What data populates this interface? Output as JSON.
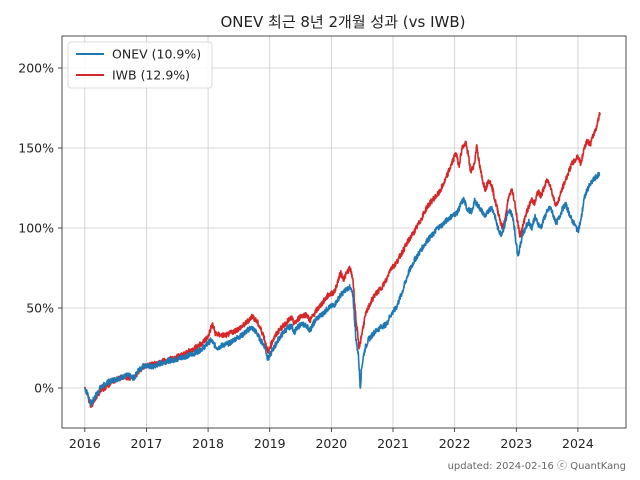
{
  "chart_data": {
    "type": "line",
    "title": "ONEV 최근 8년 2개월 성과 (vs IWB)",
    "xlabel": "",
    "ylabel": "",
    "xlim": [
      2015.63,
      2024.78
    ],
    "ylim": [
      -25,
      220
    ],
    "x_ticks": [
      2016,
      2017,
      2018,
      2019,
      2020,
      2021,
      2022,
      2023,
      2024
    ],
    "x_tick_labels": [
      "2016",
      "2017",
      "2018",
      "2019",
      "2020",
      "2021",
      "2022",
      "2023",
      "2024"
    ],
    "y_ticks": [
      0,
      50,
      100,
      150,
      200
    ],
    "y_tick_labels": [
      "0%",
      "50%",
      "100%",
      "150%",
      "200%"
    ],
    "grid": true,
    "legend_position": "top-left",
    "series": [
      {
        "name": "ONEV (10.9%)",
        "color": "#1f77b4",
        "points": [
          [
            2016.0,
            0
          ],
          [
            2016.05,
            -4
          ],
          [
            2016.1,
            -10
          ],
          [
            2016.16,
            -6
          ],
          [
            2016.25,
            0
          ],
          [
            2016.35,
            3
          ],
          [
            2016.45,
            5
          ],
          [
            2016.55,
            6
          ],
          [
            2016.62,
            7
          ],
          [
            2016.7,
            8
          ],
          [
            2016.8,
            6
          ],
          [
            2016.85,
            10
          ],
          [
            2016.95,
            14
          ],
          [
            2017.0,
            14
          ],
          [
            2017.1,
            13
          ],
          [
            2017.2,
            15
          ],
          [
            2017.35,
            17
          ],
          [
            2017.5,
            18
          ],
          [
            2017.65,
            20
          ],
          [
            2017.8,
            22
          ],
          [
            2017.95,
            26
          ],
          [
            2018.05,
            30
          ],
          [
            2018.1,
            27
          ],
          [
            2018.15,
            25
          ],
          [
            2018.25,
            27
          ],
          [
            2018.35,
            28
          ],
          [
            2018.45,
            31
          ],
          [
            2018.55,
            33
          ],
          [
            2018.7,
            38
          ],
          [
            2018.78,
            35
          ],
          [
            2018.85,
            30
          ],
          [
            2018.92,
            26
          ],
          [
            2018.97,
            18
          ],
          [
            2019.05,
            24
          ],
          [
            2019.15,
            31
          ],
          [
            2019.25,
            36
          ],
          [
            2019.35,
            39
          ],
          [
            2019.4,
            35
          ],
          [
            2019.5,
            40
          ],
          [
            2019.6,
            39
          ],
          [
            2019.65,
            36
          ],
          [
            2019.75,
            43
          ],
          [
            2019.85,
            46
          ],
          [
            2019.95,
            50
          ],
          [
            2020.05,
            52
          ],
          [
            2020.1,
            55
          ],
          [
            2020.15,
            58
          ],
          [
            2020.2,
            60
          ],
          [
            2020.25,
            62
          ],
          [
            2020.3,
            63
          ],
          [
            2020.35,
            58
          ],
          [
            2020.4,
            30
          ],
          [
            2020.44,
            20
          ],
          [
            2020.47,
            0
          ],
          [
            2020.49,
            12
          ],
          [
            2020.52,
            20
          ],
          [
            2020.55,
            25
          ],
          [
            2020.6,
            30
          ],
          [
            2020.7,
            35
          ],
          [
            2020.8,
            38
          ],
          [
            2020.9,
            40
          ],
          [
            2020.95,
            45
          ],
          [
            2021.05,
            50
          ],
          [
            2021.15,
            60
          ],
          [
            2021.25,
            72
          ],
          [
            2021.35,
            80
          ],
          [
            2021.45,
            86
          ],
          [
            2021.55,
            92
          ],
          [
            2021.65,
            96
          ],
          [
            2021.72,
            100
          ],
          [
            2021.8,
            102
          ],
          [
            2021.9,
            106
          ],
          [
            2021.98,
            108
          ],
          [
            2022.05,
            110
          ],
          [
            2022.1,
            115
          ],
          [
            2022.15,
            118
          ],
          [
            2022.2,
            112
          ],
          [
            2022.28,
            110
          ],
          [
            2022.32,
            117
          ],
          [
            2022.38,
            114
          ],
          [
            2022.45,
            110
          ],
          [
            2022.5,
            107
          ],
          [
            2022.55,
            111
          ],
          [
            2022.6,
            113
          ],
          [
            2022.65,
            108
          ],
          [
            2022.7,
            100
          ],
          [
            2022.75,
            96
          ],
          [
            2022.8,
            100
          ],
          [
            2022.85,
            108
          ],
          [
            2022.9,
            111
          ],
          [
            2022.95,
            106
          ],
          [
            2023.0,
            90
          ],
          [
            2023.03,
            83
          ],
          [
            2023.06,
            88
          ],
          [
            2023.1,
            96
          ],
          [
            2023.15,
            100
          ],
          [
            2023.2,
            104
          ],
          [
            2023.25,
            100
          ],
          [
            2023.3,
            107
          ],
          [
            2023.35,
            103
          ],
          [
            2023.4,
            100
          ],
          [
            2023.45,
            106
          ],
          [
            2023.5,
            110
          ],
          [
            2023.55,
            113
          ],
          [
            2023.6,
            108
          ],
          [
            2023.65,
            103
          ],
          [
            2023.7,
            107
          ],
          [
            2023.75,
            112
          ],
          [
            2023.8,
            115
          ],
          [
            2023.85,
            110
          ],
          [
            2023.9,
            105
          ],
          [
            2023.95,
            102
          ],
          [
            2024.0,
            98
          ],
          [
            2024.05,
            105
          ],
          [
            2024.1,
            118
          ],
          [
            2024.15,
            124
          ],
          [
            2024.2,
            127
          ],
          [
            2024.25,
            130
          ],
          [
            2024.3,
            132
          ],
          [
            2024.35,
            134
          ]
        ]
      },
      {
        "name": "IWB (12.9%)",
        "color": "#d62728",
        "points": [
          [
            2016.0,
            0
          ],
          [
            2016.05,
            -5
          ],
          [
            2016.1,
            -12
          ],
          [
            2016.16,
            -7
          ],
          [
            2016.25,
            -2
          ],
          [
            2016.35,
            1
          ],
          [
            2016.45,
            4
          ],
          [
            2016.55,
            6
          ],
          [
            2016.65,
            7
          ],
          [
            2016.75,
            6
          ],
          [
            2016.82,
            7
          ],
          [
            2016.88,
            11
          ],
          [
            2016.95,
            13
          ],
          [
            2017.0,
            14
          ],
          [
            2017.15,
            15
          ],
          [
            2017.3,
            17
          ],
          [
            2017.45,
            19
          ],
          [
            2017.6,
            21
          ],
          [
            2017.75,
            24
          ],
          [
            2017.9,
            28
          ],
          [
            2018.0,
            32
          ],
          [
            2018.07,
            40
          ],
          [
            2018.12,
            34
          ],
          [
            2018.2,
            33
          ],
          [
            2018.3,
            33
          ],
          [
            2018.4,
            35
          ],
          [
            2018.5,
            37
          ],
          [
            2018.6,
            40
          ],
          [
            2018.72,
            45
          ],
          [
            2018.8,
            41
          ],
          [
            2018.9,
            33
          ],
          [
            2018.97,
            22
          ],
          [
            2019.05,
            30
          ],
          [
            2019.15,
            36
          ],
          [
            2019.25,
            40
          ],
          [
            2019.35,
            44
          ],
          [
            2019.4,
            40
          ],
          [
            2019.5,
            45
          ],
          [
            2019.6,
            46
          ],
          [
            2019.65,
            42
          ],
          [
            2019.75,
            48
          ],
          [
            2019.85,
            53
          ],
          [
            2019.95,
            58
          ],
          [
            2020.05,
            60
          ],
          [
            2020.1,
            66
          ],
          [
            2020.15,
            72
          ],
          [
            2020.2,
            68
          ],
          [
            2020.25,
            72
          ],
          [
            2020.3,
            75
          ],
          [
            2020.35,
            68
          ],
          [
            2020.4,
            42
          ],
          [
            2020.45,
            25
          ],
          [
            2020.5,
            35
          ],
          [
            2020.55,
            45
          ],
          [
            2020.62,
            52
          ],
          [
            2020.7,
            58
          ],
          [
            2020.8,
            62
          ],
          [
            2020.9,
            68
          ],
          [
            2020.95,
            74
          ],
          [
            2021.05,
            78
          ],
          [
            2021.15,
            85
          ],
          [
            2021.25,
            92
          ],
          [
            2021.35,
            98
          ],
          [
            2021.45,
            105
          ],
          [
            2021.55,
            113
          ],
          [
            2021.65,
            118
          ],
          [
            2021.75,
            122
          ],
          [
            2021.85,
            130
          ],
          [
            2021.95,
            140
          ],
          [
            2022.02,
            147
          ],
          [
            2022.07,
            139
          ],
          [
            2022.12,
            150
          ],
          [
            2022.18,
            153
          ],
          [
            2022.22,
            146
          ],
          [
            2022.26,
            135
          ],
          [
            2022.32,
            140
          ],
          [
            2022.36,
            152
          ],
          [
            2022.4,
            140
          ],
          [
            2022.45,
            130
          ],
          [
            2022.5,
            124
          ],
          [
            2022.55,
            130
          ],
          [
            2022.6,
            127
          ],
          [
            2022.65,
            118
          ],
          [
            2022.72,
            108
          ],
          [
            2022.77,
            100
          ],
          [
            2022.82,
            105
          ],
          [
            2022.88,
            120
          ],
          [
            2022.93,
            124
          ],
          [
            2022.98,
            115
          ],
          [
            2023.02,
            104
          ],
          [
            2023.06,
            95
          ],
          [
            2023.1,
            100
          ],
          [
            2023.15,
            108
          ],
          [
            2023.2,
            113
          ],
          [
            2023.25,
            118
          ],
          [
            2023.3,
            115
          ],
          [
            2023.35,
            123
          ],
          [
            2023.4,
            120
          ],
          [
            2023.45,
            125
          ],
          [
            2023.5,
            130
          ],
          [
            2023.55,
            127
          ],
          [
            2023.6,
            119
          ],
          [
            2023.65,
            114
          ],
          [
            2023.7,
            119
          ],
          [
            2023.75,
            125
          ],
          [
            2023.8,
            130
          ],
          [
            2023.85,
            135
          ],
          [
            2023.9,
            140
          ],
          [
            2023.95,
            142
          ],
          [
            2024.0,
            145
          ],
          [
            2024.05,
            140
          ],
          [
            2024.1,
            150
          ],
          [
            2024.15,
            155
          ],
          [
            2024.2,
            152
          ],
          [
            2024.25,
            158
          ],
          [
            2024.3,
            163
          ],
          [
            2024.33,
            168
          ],
          [
            2024.36,
            172
          ]
        ]
      }
    ]
  },
  "credit": "updated: 2024-02-16 ⓒ QuantKang"
}
